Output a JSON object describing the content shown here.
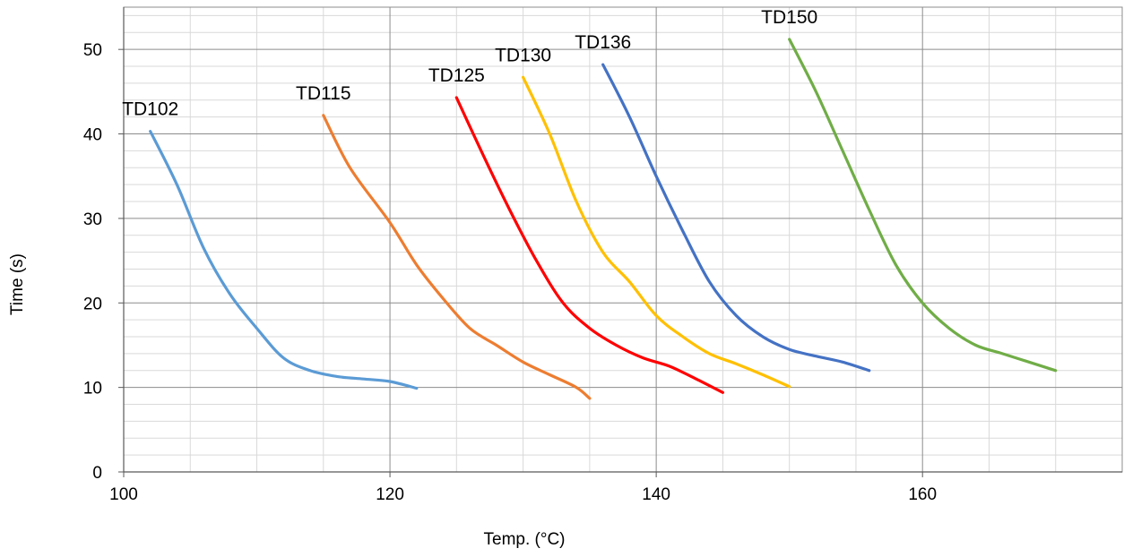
{
  "chart_data": {
    "type": "line",
    "title": "",
    "xlabel": "Temp. (°C)",
    "ylabel": "Time (s)",
    "xlim": [
      100,
      175
    ],
    "ylim": [
      0,
      55
    ],
    "x_major_ticks": [
      100,
      120,
      140,
      160
    ],
    "y_major_ticks": [
      0,
      10,
      20,
      30,
      40,
      50
    ],
    "minor_grid": true,
    "major_grid": true,
    "legend": "none (series labelled directly at curve start)",
    "series": [
      {
        "name": "TD102",
        "color": "#5B9BD5",
        "points": [
          [
            102,
            40.3
          ],
          [
            104,
            34
          ],
          [
            106,
            26.5
          ],
          [
            108,
            21
          ],
          [
            110,
            17
          ],
          [
            112,
            13.5
          ],
          [
            114,
            12
          ],
          [
            116,
            11.3
          ],
          [
            118,
            11
          ],
          [
            120,
            10.7
          ],
          [
            122,
            9.9
          ]
        ]
      },
      {
        "name": "TD115",
        "color": "#ED7D31",
        "points": [
          [
            115,
            42.2
          ],
          [
            117,
            36
          ],
          [
            120,
            29.5
          ],
          [
            122,
            24.5
          ],
          [
            124,
            20.5
          ],
          [
            126,
            17
          ],
          [
            128,
            15
          ],
          [
            130,
            13
          ],
          [
            132,
            11.5
          ],
          [
            134,
            10
          ],
          [
            135,
            8.7
          ]
        ]
      },
      {
        "name": "TD125",
        "color": "#FF0000",
        "points": [
          [
            125,
            44.3
          ],
          [
            127,
            37.5
          ],
          [
            129,
            31
          ],
          [
            131,
            25
          ],
          [
            133,
            20
          ],
          [
            135,
            17
          ],
          [
            137,
            15
          ],
          [
            139,
            13.5
          ],
          [
            141,
            12.5
          ],
          [
            143,
            11
          ],
          [
            145,
            9.4
          ]
        ]
      },
      {
        "name": "TD130",
        "color": "#FFC000",
        "points": [
          [
            130,
            46.7
          ],
          [
            132,
            40
          ],
          [
            134,
            32
          ],
          [
            136,
            26
          ],
          [
            138,
            22.5
          ],
          [
            140,
            18.5
          ],
          [
            142,
            16
          ],
          [
            144,
            14
          ],
          [
            146,
            12.8
          ],
          [
            148,
            11.5
          ],
          [
            150,
            10.1
          ]
        ]
      },
      {
        "name": "TD136",
        "color": "#4472C4",
        "points": [
          [
            136,
            48.2
          ],
          [
            138,
            42
          ],
          [
            140,
            35
          ],
          [
            142,
            28.5
          ],
          [
            144,
            22.5
          ],
          [
            146,
            18.5
          ],
          [
            148,
            16
          ],
          [
            150,
            14.5
          ],
          [
            152,
            13.7
          ],
          [
            154,
            13
          ],
          [
            156,
            12
          ]
        ]
      },
      {
        "name": "TD150",
        "color": "#70AD47",
        "points": [
          [
            150,
            51.2
          ],
          [
            152,
            45
          ],
          [
            154,
            38
          ],
          [
            156,
            31
          ],
          [
            158,
            24.5
          ],
          [
            160,
            20
          ],
          [
            162,
            17
          ],
          [
            164,
            15
          ],
          [
            166,
            14
          ],
          [
            168,
            13
          ],
          [
            170,
            12
          ]
        ]
      }
    ]
  }
}
